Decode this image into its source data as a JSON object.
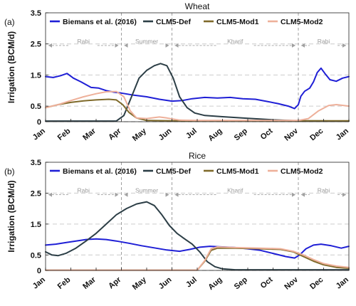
{
  "figure": {
    "ylabel": "Irrigation (BCM/d)",
    "x_tick_labels": [
      "Jan",
      "Feb",
      "Mar",
      "Apr",
      "May",
      "Jun",
      "Jul",
      "Aug",
      "Sep",
      "Oct",
      "Nov",
      "Dec",
      "Jan"
    ],
    "y_tick_labels": [
      "0",
      "0.5",
      "1.5",
      "2.5",
      "3.5"
    ],
    "season_labels": [
      "Rabi",
      "Summer",
      "Kharif",
      "Rabi"
    ]
  },
  "colors": {
    "biemans": "#1f1fd6",
    "def": "#2c3e46",
    "mod1": "#7f6a2a",
    "mod2": "#eeb09a",
    "grid": "#cccccc",
    "season": "#a0a0a0"
  },
  "chart_data": [
    {
      "type": "line",
      "panel_label": "(a)",
      "title": "Wheat",
      "ylabel": "Irrigation (BCM/d)",
      "ylim": [
        0,
        3.5
      ],
      "xlim": [
        1,
        13
      ],
      "y_ticks": [
        0,
        0.5,
        1.5,
        2.5,
        3.5
      ],
      "x_tick_labels": [
        "Jan",
        "Feb",
        "Mar",
        "Apr",
        "May",
        "Jun",
        "Jul",
        "Aug",
        "Sep",
        "Oct",
        "Nov",
        "Dec",
        "Jan"
      ],
      "grid": "horizontal dashed",
      "legend": "top",
      "season_markers": {
        "boundaries": [
          4,
          6,
          11
        ],
        "labels": [
          "Rabi",
          "Summer",
          "Kharif",
          "Rabi"
        ]
      },
      "series": [
        {
          "name": "Biemans et al. (2016)",
          "color": "#1f1fd6",
          "points": [
            [
              1,
              1.45
            ],
            [
              1.3,
              1.42
            ],
            [
              1.6,
              1.48
            ],
            [
              1.85,
              1.55
            ],
            [
              2.1,
              1.4
            ],
            [
              2.4,
              1.28
            ],
            [
              2.8,
              1.1
            ],
            [
              3.1,
              1.08
            ],
            [
              3.4,
              1.0
            ],
            [
              3.7,
              0.95
            ],
            [
              4,
              0.92
            ],
            [
              4.5,
              0.85
            ],
            [
              5,
              0.8
            ],
            [
              5.5,
              0.72
            ],
            [
              6,
              0.66
            ],
            [
              6.4,
              0.68
            ],
            [
              6.8,
              0.74
            ],
            [
              7.3,
              0.78
            ],
            [
              7.8,
              0.76
            ],
            [
              8.3,
              0.78
            ],
            [
              8.8,
              0.74
            ],
            [
              9.3,
              0.72
            ],
            [
              9.7,
              0.66
            ],
            [
              10.2,
              0.58
            ],
            [
              10.6,
              0.5
            ],
            [
              10.85,
              0.42
            ],
            [
              11,
              0.55
            ],
            [
              11.1,
              0.82
            ],
            [
              11.25,
              0.98
            ],
            [
              11.45,
              1.08
            ],
            [
              11.6,
              1.28
            ],
            [
              11.75,
              1.58
            ],
            [
              11.9,
              1.72
            ],
            [
              12.05,
              1.55
            ],
            [
              12.25,
              1.35
            ],
            [
              12.5,
              1.3
            ],
            [
              12.75,
              1.4
            ],
            [
              13,
              1.45
            ]
          ]
        },
        {
          "name": "CLM5-Def",
          "color": "#2c3e46",
          "points": [
            [
              1,
              0.02
            ],
            [
              3.8,
              0.02
            ],
            [
              4.1,
              0.2
            ],
            [
              4.4,
              0.8
            ],
            [
              4.7,
              1.4
            ],
            [
              5,
              1.65
            ],
            [
              5.3,
              1.8
            ],
            [
              5.55,
              1.87
            ],
            [
              5.8,
              1.8
            ],
            [
              6.05,
              1.4
            ],
            [
              6.3,
              0.8
            ],
            [
              6.6,
              0.45
            ],
            [
              6.9,
              0.28
            ],
            [
              7.3,
              0.2
            ],
            [
              8,
              0.16
            ],
            [
              9,
              0.11
            ],
            [
              10,
              0.06
            ],
            [
              11,
              0.03
            ],
            [
              13,
              0.02
            ]
          ]
        },
        {
          "name": "CLM5-Mod1",
          "color": "#7f6a2a",
          "points": [
            [
              1,
              0.45
            ],
            [
              1.5,
              0.55
            ],
            [
              2,
              0.62
            ],
            [
              2.5,
              0.67
            ],
            [
              3,
              0.7
            ],
            [
              3.5,
              0.72
            ],
            [
              3.8,
              0.7
            ],
            [
              4.05,
              0.55
            ],
            [
              4.3,
              0.3
            ],
            [
              4.6,
              0.12
            ],
            [
              5,
              0.04
            ],
            [
              6,
              0.03
            ],
            [
              13,
              0.03
            ]
          ]
        },
        {
          "name": "CLM5-Mod2",
          "color": "#eeb09a",
          "points": [
            [
              1,
              0.45
            ],
            [
              1.5,
              0.55
            ],
            [
              2,
              0.68
            ],
            [
              2.5,
              0.8
            ],
            [
              3,
              0.9
            ],
            [
              3.4,
              0.96
            ],
            [
              3.8,
              0.97
            ],
            [
              4.1,
              0.8
            ],
            [
              4.35,
              0.35
            ],
            [
              4.6,
              0.12
            ],
            [
              5,
              0.1
            ],
            [
              5.5,
              0.15
            ],
            [
              5.8,
              0.12
            ],
            [
              6.3,
              0.05
            ],
            [
              7,
              0.04
            ],
            [
              11,
              0.04
            ],
            [
              11.4,
              0.1
            ],
            [
              11.8,
              0.35
            ],
            [
              12.2,
              0.52
            ],
            [
              12.5,
              0.55
            ],
            [
              12.8,
              0.52
            ],
            [
              13,
              0.5
            ]
          ]
        }
      ]
    },
    {
      "type": "line",
      "panel_label": "(b)",
      "title": "Rice",
      "ylabel": "Irrigation (BCM/d)",
      "ylim": [
        0,
        3.5
      ],
      "xlim": [
        1,
        13
      ],
      "y_ticks": [
        0,
        0.5,
        1.5,
        2.5,
        3.5
      ],
      "x_tick_labels": [
        "Jan",
        "Feb",
        "Mar",
        "Apr",
        "May",
        "Jun",
        "Jul",
        "Aug",
        "Sep",
        "Oct",
        "Nov",
        "Dec",
        "Jan"
      ],
      "grid": "horizontal dashed",
      "legend": "top",
      "season_markers": {
        "boundaries": [
          4,
          6,
          11
        ],
        "labels": [
          "Rabi",
          "Summer",
          "Kharif",
          "Rabi"
        ]
      },
      "series": [
        {
          "name": "Biemans et al. (2016)",
          "color": "#1f1fd6",
          "points": [
            [
              1,
              0.82
            ],
            [
              1.4,
              0.85
            ],
            [
              1.8,
              0.9
            ],
            [
              2.2,
              0.95
            ],
            [
              2.6,
              1.0
            ],
            [
              3,
              1.02
            ],
            [
              3.4,
              1.0
            ],
            [
              3.8,
              0.95
            ],
            [
              4.3,
              0.88
            ],
            [
              4.8,
              0.8
            ],
            [
              5.3,
              0.73
            ],
            [
              5.8,
              0.66
            ],
            [
              6.3,
              0.62
            ],
            [
              6.7,
              0.68
            ],
            [
              7.1,
              0.75
            ],
            [
              7.5,
              0.78
            ],
            [
              8,
              0.76
            ],
            [
              8.5,
              0.74
            ],
            [
              9,
              0.7
            ],
            [
              9.5,
              0.65
            ],
            [
              10,
              0.55
            ],
            [
              10.5,
              0.45
            ],
            [
              10.85,
              0.4
            ],
            [
              11.05,
              0.5
            ],
            [
              11.3,
              0.7
            ],
            [
              11.6,
              0.82
            ],
            [
              11.9,
              0.85
            ],
            [
              12.3,
              0.8
            ],
            [
              12.7,
              0.72
            ],
            [
              13,
              0.78
            ]
          ]
        },
        {
          "name": "CLM5-Def",
          "color": "#2c3e46",
          "points": [
            [
              1,
              0.6
            ],
            [
              1.25,
              0.5
            ],
            [
              1.5,
              0.48
            ],
            [
              1.8,
              0.55
            ],
            [
              2.2,
              0.72
            ],
            [
              2.6,
              0.95
            ],
            [
              3,
              1.2
            ],
            [
              3.4,
              1.5
            ],
            [
              3.8,
              1.8
            ],
            [
              4.2,
              2.0
            ],
            [
              4.6,
              2.15
            ],
            [
              5,
              2.22
            ],
            [
              5.3,
              2.1
            ],
            [
              5.6,
              1.8
            ],
            [
              5.9,
              1.45
            ],
            [
              6.2,
              1.2
            ],
            [
              6.5,
              1.02
            ],
            [
              6.8,
              0.85
            ],
            [
              7.1,
              0.6
            ],
            [
              7.4,
              0.28
            ],
            [
              7.7,
              0.12
            ],
            [
              8,
              0.05
            ],
            [
              8.5,
              0.02
            ],
            [
              13,
              0.02
            ]
          ]
        },
        {
          "name": "CLM5-Mod1",
          "color": "#7f6a2a",
          "points": [
            [
              1,
              0.01
            ],
            [
              7,
              0.01
            ],
            [
              7.3,
              0.3
            ],
            [
              7.55,
              0.65
            ],
            [
              7.8,
              0.72
            ],
            [
              8.5,
              0.72
            ],
            [
              9.5,
              0.7
            ],
            [
              10.3,
              0.68
            ],
            [
              10.8,
              0.6
            ],
            [
              11.2,
              0.45
            ],
            [
              11.6,
              0.3
            ],
            [
              12,
              0.18
            ],
            [
              12.5,
              0.1
            ],
            [
              13,
              0.07
            ]
          ]
        },
        {
          "name": "CLM5-Mod2",
          "color": "#eeb09a",
          "points": [
            [
              1,
              0.01
            ],
            [
              7,
              0.01
            ],
            [
              7.3,
              0.32
            ],
            [
              7.55,
              0.7
            ],
            [
              7.8,
              0.76
            ],
            [
              8.5,
              0.74
            ],
            [
              9.5,
              0.72
            ],
            [
              10.3,
              0.7
            ],
            [
              10.8,
              0.62
            ],
            [
              11.2,
              0.5
            ],
            [
              11.6,
              0.35
            ],
            [
              12,
              0.22
            ],
            [
              12.5,
              0.14
            ],
            [
              13,
              0.1
            ]
          ]
        }
      ]
    }
  ]
}
